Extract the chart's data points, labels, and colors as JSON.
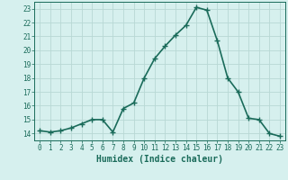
{
  "x": [
    0,
    1,
    2,
    3,
    4,
    5,
    6,
    7,
    8,
    9,
    10,
    11,
    12,
    13,
    14,
    15,
    16,
    17,
    18,
    19,
    20,
    21,
    22,
    23
  ],
  "y": [
    14.2,
    14.1,
    14.2,
    14.4,
    14.7,
    15.0,
    15.0,
    14.1,
    15.8,
    16.2,
    18.0,
    19.4,
    20.3,
    21.1,
    21.8,
    23.1,
    22.9,
    20.7,
    18.0,
    17.0,
    15.1,
    15.0,
    14.0,
    13.8
  ],
  "line_color": "#1a6b5a",
  "marker": "+",
  "marker_size": 4,
  "bg_color": "#d6f0ee",
  "grid_color": "#b8d8d4",
  "xlabel": "Humidex (Indice chaleur)",
  "xlim": [
    -0.5,
    23.5
  ],
  "ylim": [
    13.5,
    23.5
  ],
  "yticks": [
    14,
    15,
    16,
    17,
    18,
    19,
    20,
    21,
    22,
    23
  ],
  "xticks": [
    0,
    1,
    2,
    3,
    4,
    5,
    6,
    7,
    8,
    9,
    10,
    11,
    12,
    13,
    14,
    15,
    16,
    17,
    18,
    19,
    20,
    21,
    22,
    23
  ],
  "tick_color": "#1a6b5a",
  "label_color": "#1a6b5a",
  "tick_fontsize": 5.5,
  "xlabel_fontsize": 7,
  "linewidth": 1.2
}
